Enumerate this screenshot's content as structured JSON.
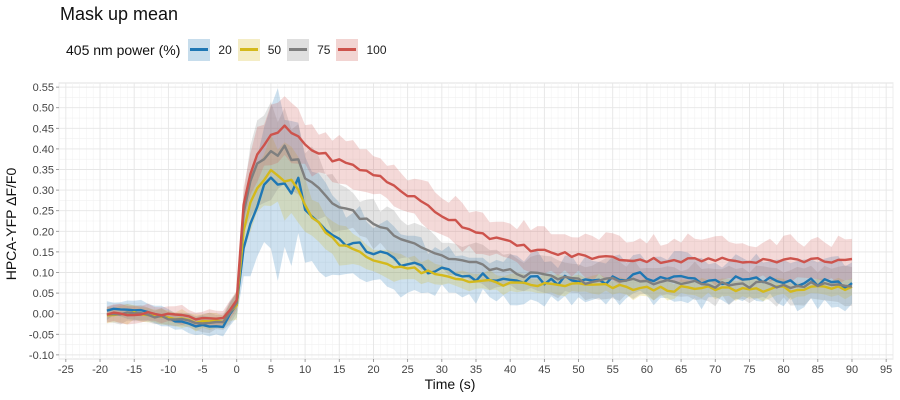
{
  "chart_data": {
    "type": "line",
    "title": "Mask up mean",
    "xlabel": "Time (s)",
    "ylabel": "HPCA-YFP ΔF/F0",
    "xlim": [
      -26,
      96
    ],
    "ylim": [
      -0.11,
      0.56
    ],
    "x_ticks": [
      -25,
      -20,
      -15,
      -10,
      -5,
      0,
      5,
      10,
      15,
      20,
      25,
      30,
      35,
      40,
      45,
      50,
      55,
      60,
      65,
      70,
      75,
      80,
      85,
      90,
      95
    ],
    "y_ticks": [
      -0.1,
      -0.05,
      0.0,
      0.05,
      0.1,
      0.15,
      0.2,
      0.25,
      0.3,
      0.35,
      0.4,
      0.45,
      0.5,
      0.55
    ],
    "grid": true,
    "legend": {
      "title": "405 nm power (%)",
      "position": "top-left"
    },
    "keyframes_x": [
      -19,
      -15,
      -10,
      -6,
      -2,
      0,
      1,
      2,
      3,
      4,
      5,
      6,
      7,
      8,
      9,
      10,
      12,
      15,
      20,
      25,
      30,
      35,
      40,
      45,
      50,
      60,
      70,
      80,
      90
    ],
    "series": [
      {
        "name": "20",
        "color": "#1f77b4",
        "mean": [
          0.01,
          0.01,
          -0.01,
          -0.03,
          -0.03,
          0.02,
          0.15,
          0.21,
          0.27,
          0.31,
          0.32,
          0.32,
          0.31,
          0.3,
          0.32,
          0.26,
          0.22,
          0.18,
          0.15,
          0.12,
          0.1,
          0.09,
          0.08,
          0.08,
          0.08,
          0.09,
          0.08,
          0.08,
          0.07
        ],
        "sd": [
          0.02,
          0.02,
          0.02,
          0.02,
          0.02,
          0.03,
          0.08,
          0.12,
          0.16,
          0.18,
          0.2,
          0.19,
          0.18,
          0.17,
          0.15,
          0.12,
          0.1,
          0.08,
          0.07,
          0.06,
          0.05,
          0.05,
          0.05,
          0.05,
          0.05,
          0.05,
          0.05,
          0.05,
          0.05
        ]
      },
      {
        "name": "50",
        "color": "#d4b91c",
        "mean": [
          0.0,
          0.0,
          -0.01,
          -0.02,
          -0.02,
          0.02,
          0.2,
          0.27,
          0.31,
          0.33,
          0.35,
          0.33,
          0.32,
          0.33,
          0.3,
          0.26,
          0.22,
          0.17,
          0.13,
          0.11,
          0.09,
          0.08,
          0.07,
          0.07,
          0.07,
          0.06,
          0.06,
          0.06,
          0.06
        ],
        "sd": [
          0.02,
          0.02,
          0.02,
          0.02,
          0.02,
          0.03,
          0.05,
          0.06,
          0.07,
          0.08,
          0.08,
          0.08,
          0.08,
          0.07,
          0.07,
          0.06,
          0.05,
          0.04,
          0.03,
          0.03,
          0.02,
          0.02,
          0.02,
          0.02,
          0.02,
          0.02,
          0.02,
          0.02,
          0.02
        ]
      },
      {
        "name": "75",
        "color": "#7f7f7f",
        "mean": [
          0.0,
          0.0,
          -0.01,
          -0.02,
          -0.02,
          0.03,
          0.25,
          0.32,
          0.36,
          0.38,
          0.4,
          0.39,
          0.4,
          0.38,
          0.37,
          0.33,
          0.3,
          0.26,
          0.22,
          0.18,
          0.14,
          0.12,
          0.1,
          0.09,
          0.08,
          0.08,
          0.07,
          0.07,
          0.07
        ],
        "sd": [
          0.02,
          0.02,
          0.02,
          0.02,
          0.02,
          0.03,
          0.06,
          0.08,
          0.09,
          0.1,
          0.11,
          0.1,
          0.1,
          0.09,
          0.09,
          0.08,
          0.07,
          0.06,
          0.05,
          0.05,
          0.04,
          0.04,
          0.04,
          0.04,
          0.04,
          0.04,
          0.04,
          0.04,
          0.04
        ]
      },
      {
        "name": "100",
        "color": "#cd534c",
        "mean": [
          0.0,
          0.0,
          0.0,
          -0.01,
          -0.01,
          0.03,
          0.26,
          0.34,
          0.38,
          0.41,
          0.43,
          0.44,
          0.45,
          0.44,
          0.43,
          0.41,
          0.39,
          0.37,
          0.34,
          0.29,
          0.24,
          0.2,
          0.17,
          0.15,
          0.14,
          0.13,
          0.13,
          0.13,
          0.13
        ],
        "sd": [
          0.02,
          0.02,
          0.02,
          0.02,
          0.02,
          0.03,
          0.04,
          0.05,
          0.06,
          0.06,
          0.07,
          0.07,
          0.07,
          0.07,
          0.06,
          0.06,
          0.06,
          0.05,
          0.05,
          0.05,
          0.05,
          0.05,
          0.05,
          0.05,
          0.05,
          0.05,
          0.05,
          0.05,
          0.05
        ]
      }
    ]
  }
}
